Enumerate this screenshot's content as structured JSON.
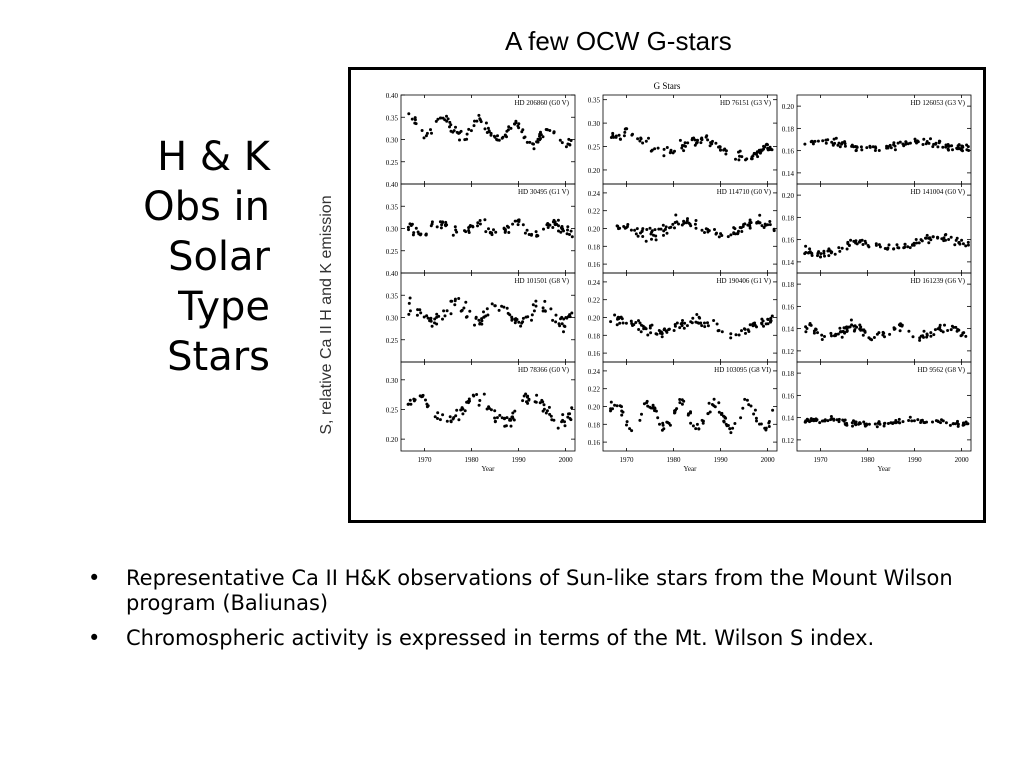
{
  "slide": {
    "title_lines": [
      "H & K",
      "Obs in",
      "Solar",
      "Type",
      "Stars"
    ],
    "figure_heading": "A few OCW G-stars",
    "bullets": [
      "Representative Ca II H&K observations of Sun-like stars from the Mount Wilson program (Baliunas)",
      "Chromospheric activity is expressed in terms of the Mt. Wilson S index."
    ]
  },
  "chart_data": {
    "type": "scatter",
    "title": "G Stars",
    "ylabel": "S, relative Ca II H and K emission",
    "xlabel": "Year",
    "xlim": [
      1965,
      2002
    ],
    "xticks": [
      1970,
      1980,
      1990,
      2000
    ],
    "columns": [
      [
        {
          "name": "HD 206860 (G0 V)",
          "ylim": [
            0.2,
            0.4
          ],
          "yticks": [
            0.25,
            0.3,
            0.35,
            0.4
          ],
          "mean": 0.32,
          "amp": 0.02,
          "period": 7.5,
          "phase": 1.0,
          "trend": -0.0008,
          "noise": 0.012
        },
        {
          "name": "HD 30495 (G1 V)",
          "ylim": [
            0.2,
            0.4
          ],
          "yticks": [
            0.25,
            0.3,
            0.35,
            0.4
          ],
          "mean": 0.3,
          "amp": 0.012,
          "period": 8.0,
          "phase": 2.0,
          "trend": 0.0,
          "noise": 0.012
        },
        {
          "name": "HD 101501 (G8 V)",
          "ylim": [
            0.2,
            0.4
          ],
          "yticks": [
            0.25,
            0.3,
            0.35,
            0.4
          ],
          "mean": 0.31,
          "amp": 0.02,
          "period": 9.0,
          "phase": 0.5,
          "trend": 0.0,
          "noise": 0.018
        },
        {
          "name": "HD 78366 (G0 V)",
          "ylim": [
            0.18,
            0.33
          ],
          "yticks": [
            0.2,
            0.25,
            0.3
          ],
          "mean": 0.25,
          "amp": 0.02,
          "period": 12.0,
          "phase": 0.0,
          "trend": 0.0,
          "noise": 0.012
        }
      ],
      [
        {
          "name": "HD 76151 (G3 V)",
          "ylim": [
            0.17,
            0.36
          ],
          "yticks": [
            0.2,
            0.25,
            0.3,
            0.35
          ],
          "mean": 0.25,
          "amp": 0.015,
          "period": 16.0,
          "phase": 0.0,
          "trend": -0.0008,
          "noise": 0.012
        },
        {
          "name": "HD 114710 (G0 V)",
          "ylim": [
            0.15,
            0.25
          ],
          "yticks": [
            0.16,
            0.18,
            0.2,
            0.22,
            0.24
          ],
          "mean": 0.2,
          "amp": 0.008,
          "period": 16.0,
          "phase": 1.5,
          "trend": 0.0,
          "noise": 0.007
        },
        {
          "name": "HD 190406 (G1 V)",
          "ylim": [
            0.15,
            0.25
          ],
          "yticks": [
            0.16,
            0.18,
            0.2,
            0.22,
            0.24
          ],
          "mean": 0.19,
          "amp": 0.006,
          "period": 16.0,
          "phase": 0.5,
          "trend": 0.0,
          "noise": 0.006
        },
        {
          "name": "HD 103095 (G8 VI)",
          "ylim": [
            0.15,
            0.25
          ],
          "yticks": [
            0.16,
            0.18,
            0.2,
            0.22,
            0.24
          ],
          "mean": 0.19,
          "amp": 0.015,
          "period": 7.0,
          "phase": 0.0,
          "trend": 0.0,
          "noise": 0.006
        }
      ],
      [
        {
          "name": "HD 126053 (G3 V)",
          "ylim": [
            0.13,
            0.21
          ],
          "yticks": [
            0.14,
            0.16,
            0.18,
            0.2
          ],
          "mean": 0.165,
          "amp": 0.003,
          "period": 20.0,
          "phase": 0.0,
          "trend": 0.0,
          "noise": 0.004
        },
        {
          "name": "HD 141004 (G0 V)",
          "ylim": [
            0.13,
            0.21
          ],
          "yticks": [
            0.14,
            0.16,
            0.18,
            0.2
          ],
          "mean": 0.155,
          "amp": 0.004,
          "period": 16.0,
          "phase": 3.0,
          "trend": 0.0003,
          "noise": 0.004
        },
        {
          "name": "HD 161239 (G6 V)",
          "ylim": [
            0.11,
            0.19
          ],
          "yticks": [
            0.12,
            0.14,
            0.16,
            0.18
          ],
          "mean": 0.137,
          "amp": 0.005,
          "period": 10.0,
          "phase": 1.0,
          "trend": 0.0,
          "noise": 0.004
        },
        {
          "name": "HD 9562 (G8 V)",
          "ylim": [
            0.11,
            0.19
          ],
          "yticks": [
            0.12,
            0.14,
            0.16,
            0.18
          ],
          "mean": 0.136,
          "amp": 0.002,
          "period": 20.0,
          "phase": 0.0,
          "trend": 0.0,
          "noise": 0.0025
        }
      ]
    ]
  }
}
